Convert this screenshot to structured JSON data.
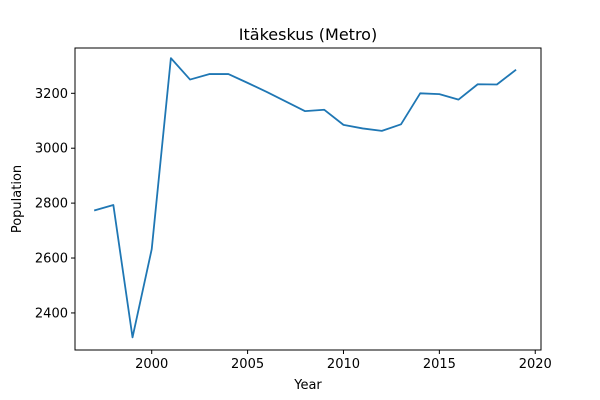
{
  "chart_data": {
    "type": "line",
    "title": "Itäkeskus (Metro)",
    "xlabel": "Year",
    "ylabel": "Population",
    "xlim": [
      1996.0,
      2020.3
    ],
    "ylim": [
      2265,
      3365
    ],
    "xticks": [
      2000,
      2005,
      2010,
      2015,
      2020
    ],
    "yticks": [
      2400,
      2600,
      2800,
      3000,
      3200
    ],
    "grid": false,
    "line_color": "#1f77b4",
    "series": [
      {
        "x": [
          1997,
          1998,
          1999,
          2000,
          2001,
          2002,
          2003,
          2004,
          2005,
          2006,
          2007,
          2008,
          2009,
          2010,
          2011,
          2012,
          2013,
          2014,
          2015,
          2016,
          2017,
          2018,
          2019
        ],
        "values": [
          2773,
          2793,
          2311,
          2632,
          3328,
          3250,
          3270,
          3270,
          3238,
          3205,
          3170,
          3135,
          3140,
          3085,
          3072,
          3063,
          3087,
          3200,
          3197,
          3177,
          3233,
          3232,
          3286
        ]
      }
    ]
  }
}
